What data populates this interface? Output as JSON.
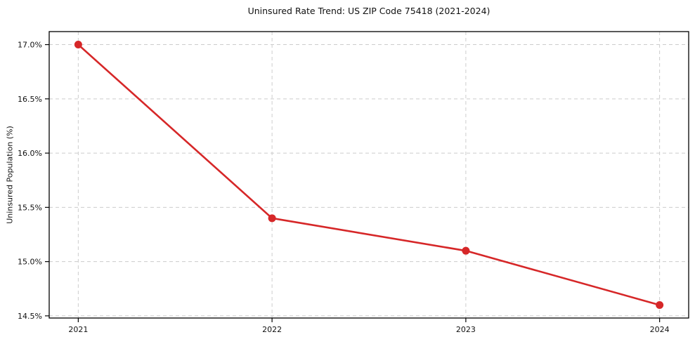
{
  "chart_data": {
    "type": "line",
    "title": "Uninsured Rate Trend: US ZIP Code 75418 (2021-2024)",
    "xlabel": "",
    "ylabel": "Uninsured Population (%)",
    "x": [
      2021,
      2022,
      2023,
      2024
    ],
    "x_tick_labels": [
      "2021",
      "2022",
      "2023",
      "2024"
    ],
    "values": [
      17.0,
      15.4,
      15.1,
      14.6
    ],
    "y_ticks": [
      14.5,
      15.0,
      15.5,
      16.0,
      16.5,
      17.0
    ],
    "y_tick_labels": [
      "14.5%",
      "15.0%",
      "15.5%",
      "16.0%",
      "16.5%",
      "17.0%"
    ],
    "xlim": [
      2020.85,
      2024.15
    ],
    "ylim": [
      14.48,
      17.12
    ],
    "grid": true,
    "grid_style": "dashed",
    "legend": false,
    "colors": {
      "line": "#d62728",
      "marker": "#d62728",
      "grid": "#cccccc",
      "spine": "#000000",
      "tick_text": "#111111"
    }
  }
}
